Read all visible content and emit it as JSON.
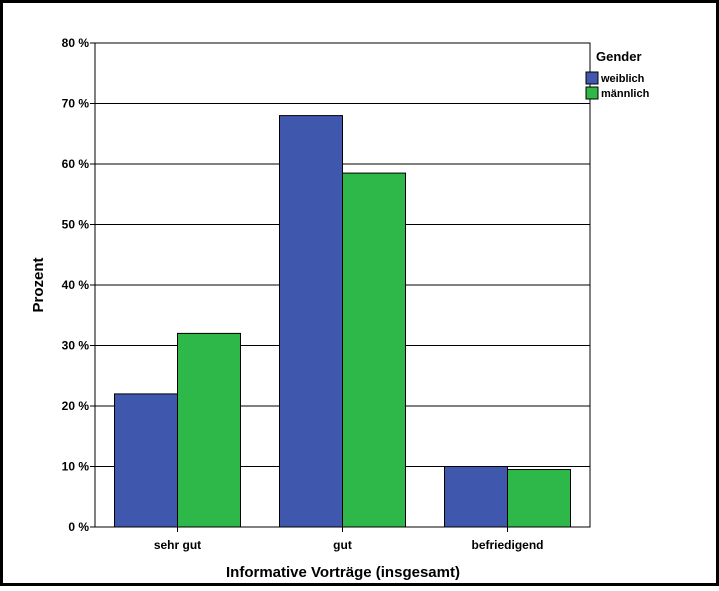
{
  "chart_data": {
    "type": "bar",
    "categories": [
      "sehr gut",
      "gut",
      "befriedigend"
    ],
    "series": [
      {
        "name": "weiblich",
        "values": [
          22,
          68,
          10
        ],
        "color": "#3f57ad"
      },
      {
        "name": "männlich",
        "values": [
          32,
          58.5,
          9.5
        ],
        "color": "#2eb84a"
      }
    ],
    "xlabel": "Informative Vorträge (insgesamt)",
    "ylabel": "Prozent",
    "ylim": [
      0,
      80
    ],
    "yticks": [
      0,
      10,
      20,
      30,
      40,
      50,
      60,
      70,
      80
    ],
    "ytick_labels": [
      "0 %",
      "10 %",
      "20 %",
      "30 %",
      "40 %",
      "50 %",
      "60 %",
      "70 %",
      "80 %"
    ],
    "legend_title": "Gender",
    "legend_position": "top-right",
    "grid": "horizontal"
  }
}
